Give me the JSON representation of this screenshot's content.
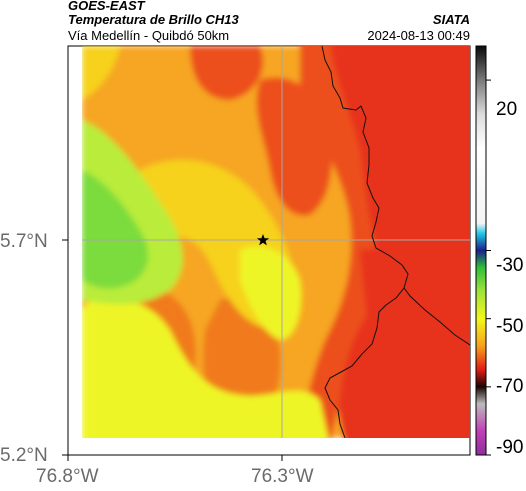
{
  "header": {
    "satellite": "GOES-EAST",
    "product": "Temperatura de Brillo CH13",
    "region": "Vía Medellín - Quibdó 50km",
    "agency": "SIATA",
    "datetime": "2024-08-13 00:49"
  },
  "map": {
    "lat_ticks": [
      "5.7°N",
      "5.2°N"
    ],
    "lon_ticks": [
      "76.8°W",
      "76.3°W"
    ],
    "marker": "star-marker"
  },
  "colorbar": {
    "ticks": [
      "20",
      "-30",
      "-50",
      "-70",
      "-90"
    ],
    "stops": [
      {
        "v": 30,
        "c": "#0a0a0a"
      },
      {
        "v": 20,
        "c": "#7a7a7a"
      },
      {
        "v": 10,
        "c": "#dcdcdc"
      },
      {
        "v": 0,
        "c": "#ffffff"
      },
      {
        "v": -22,
        "c": "#f4f4f4"
      },
      {
        "v": -25,
        "c": "#1ec8e6"
      },
      {
        "v": -30,
        "c": "#1a1f8a"
      },
      {
        "v": -35,
        "c": "#2fbf3a"
      },
      {
        "v": -42,
        "c": "#9fe33a"
      },
      {
        "v": -50,
        "c": "#f3f71b"
      },
      {
        "v": -58,
        "c": "#f7a11b"
      },
      {
        "v": -65,
        "c": "#e21b16"
      },
      {
        "v": -70,
        "c": "#1a0505"
      },
      {
        "v": -75,
        "c": "#bbbbbb"
      },
      {
        "v": -83,
        "c": "#c23fb5"
      },
      {
        "v": -90,
        "c": "#8d2f9e"
      }
    ]
  },
  "palette": {
    "green": "#7bdc3e",
    "lightgreen": "#b9ec3a",
    "yellow": "#eef525",
    "yelloworange": "#f6d21c",
    "orange": "#f6a623",
    "darkorange": "#f07a1e",
    "redorange": "#ec4f1e",
    "red": "#e7321c"
  }
}
